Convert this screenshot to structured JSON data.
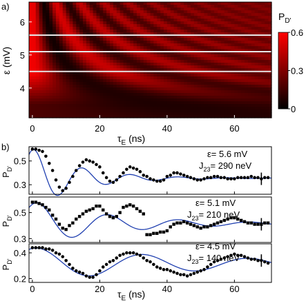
{
  "chart_data": [
    {
      "panel_label": "a)",
      "type": "heatmap",
      "xlabel_main": "τ",
      "xlabel_sub": "E",
      "xlabel_unit": " (ns)",
      "ylabel": "ε (mV)",
      "xlim": [
        -1,
        71
      ],
      "ylim": [
        3.1,
        6.6
      ],
      "xticks": [
        0,
        20,
        40,
        60
      ],
      "yticks": [
        4,
        5,
        6
      ],
      "cut_lines_y": [
        5.6,
        5.1,
        4.5
      ],
      "colorbar": {
        "label_main": "P",
        "label_sub": "D'",
        "ticks": [
          "0",
          "0.3",
          "0.6"
        ],
        "range": [
          0,
          0.6
        ],
        "colors": [
          "#000000",
          "#ff0000"
        ]
      }
    },
    {
      "panel_label": "b)",
      "type": "scatter",
      "xlabel_main": "τ",
      "xlabel_sub": "E",
      "xlabel_unit": " (ns)",
      "xlim": [
        -1,
        71
      ],
      "xticks": [
        0,
        20,
        40,
        60
      ],
      "panels": [
        {
          "ylabel_main": "P",
          "ylabel_sub": "D'",
          "ylim": [
            0.22,
            0.62
          ],
          "yticks": [
            "0.3",
            "0.5"
          ],
          "annotation_eps": "ε= 5.6 mV",
          "annotation_j_main": "J",
          "annotation_j_sub": "23",
          "annotation_j_value": "= 290 neV",
          "marker": "circle",
          "fit": {
            "offset": 0.355,
            "amp": 0.25,
            "omega": 0.44,
            "phase": 0.3,
            "tau": 14
          },
          "points": [
            [
              0,
              0.6
            ],
            [
              1,
              0.6
            ],
            [
              2,
              0.59
            ],
            [
              3,
              0.58
            ],
            [
              4,
              0.54
            ],
            [
              5,
              0.48
            ],
            [
              6,
              0.42
            ],
            [
              7,
              0.34
            ],
            [
              8,
              0.28
            ],
            [
              9,
              0.25
            ],
            [
              10,
              0.27
            ],
            [
              11,
              0.32
            ],
            [
              12,
              0.37
            ],
            [
              13,
              0.42
            ],
            [
              14,
              0.46
            ],
            [
              15,
              0.49
            ],
            [
              16,
              0.51
            ],
            [
              17,
              0.5
            ],
            [
              18,
              0.49
            ],
            [
              19,
              0.47
            ],
            [
              20,
              0.45
            ],
            [
              21,
              0.4
            ],
            [
              22,
              0.36
            ],
            [
              23,
              0.33
            ],
            [
              24,
              0.32
            ],
            [
              25,
              0.34
            ],
            [
              26,
              0.37
            ],
            [
              27,
              0.4
            ],
            [
              28,
              0.43
            ],
            [
              29,
              0.45
            ],
            [
              30,
              0.44
            ],
            [
              31,
              0.43
            ],
            [
              32,
              0.41
            ],
            [
              33,
              0.38
            ],
            [
              34,
              0.37
            ],
            [
              35,
              0.35
            ],
            [
              36,
              0.34
            ],
            [
              37,
              0.33
            ],
            [
              38,
              0.33
            ],
            [
              39,
              0.34
            ],
            [
              40,
              0.37
            ],
            [
              41,
              0.38
            ],
            [
              42,
              0.4
            ],
            [
              43,
              0.4
            ],
            [
              44,
              0.39
            ],
            [
              45,
              0.38
            ],
            [
              46,
              0.37
            ],
            [
              47,
              0.36
            ],
            [
              48,
              0.35
            ],
            [
              49,
              0.34
            ],
            [
              50,
              0.34
            ],
            [
              51,
              0.35
            ],
            [
              52,
              0.36
            ],
            [
              53,
              0.36
            ],
            [
              54,
              0.37
            ],
            [
              55,
              0.37
            ],
            [
              56,
              0.36
            ],
            [
              57,
              0.36
            ],
            [
              58,
              0.35
            ],
            [
              59,
              0.35
            ],
            [
              60,
              0.35
            ],
            [
              61,
              0.36
            ],
            [
              62,
              0.36
            ],
            [
              63,
              0.36
            ],
            [
              64,
              0.36
            ],
            [
              65,
              0.37
            ],
            [
              66,
              0.36
            ],
            [
              67,
              0.36
            ],
            [
              68,
              0.35
            ],
            [
              69,
              0.36
            ],
            [
              70,
              0.36
            ]
          ]
        },
        {
          "ylabel_main": "P",
          "ylabel_sub": "D'",
          "ylim": [
            0.27,
            0.62
          ],
          "yticks": [
            "0.3",
            "0.5"
          ],
          "annotation_eps": "ε= 5.1 mV",
          "annotation_j_main": "J",
          "annotation_j_sub": "23",
          "annotation_j_value": "= 210 neV",
          "marker": "square",
          "fit": {
            "offset": 0.415,
            "amp": 0.17,
            "omega": 0.3,
            "phase": 0.5,
            "tau": 25
          },
          "points": [
            [
              0,
              0.58
            ],
            [
              1,
              0.58
            ],
            [
              2,
              0.57
            ],
            [
              3,
              0.56
            ],
            [
              4,
              0.54
            ],
            [
              5,
              0.52
            ],
            [
              6,
              0.48
            ],
            [
              7,
              0.45
            ],
            [
              8,
              0.41
            ],
            [
              9,
              0.38
            ],
            [
              10,
              0.37
            ],
            [
              11,
              0.4
            ],
            [
              12,
              0.42
            ],
            [
              13,
              0.45
            ],
            [
              14,
              0.47
            ],
            [
              15,
              0.49
            ],
            [
              16,
              0.51
            ],
            [
              17,
              0.52
            ],
            [
              18,
              0.53
            ],
            [
              19,
              0.55
            ],
            [
              20,
              0.55
            ],
            [
              21,
              0.52
            ],
            [
              22,
              0.49
            ],
            [
              23,
              0.47
            ],
            [
              24,
              0.46
            ],
            [
              25,
              0.47
            ],
            [
              26,
              0.5
            ],
            [
              27,
              0.54
            ],
            [
              28,
              0.55
            ],
            [
              29,
              0.56
            ],
            [
              30,
              0.55
            ],
            [
              31,
              0.53
            ],
            [
              32,
              0.51
            ],
            [
              33,
              0.49
            ],
            [
              34,
              0.33
            ],
            [
              35,
              0.33
            ],
            [
              36,
              0.34
            ],
            [
              37,
              0.34
            ],
            [
              38,
              0.35
            ],
            [
              39,
              0.35
            ],
            [
              40,
              0.36
            ],
            [
              41,
              0.39
            ],
            [
              42,
              0.41
            ],
            [
              43,
              0.42
            ],
            [
              44,
              0.42
            ],
            [
              45,
              0.43
            ],
            [
              46,
              0.42
            ],
            [
              47,
              0.41
            ],
            [
              48,
              0.4
            ],
            [
              49,
              0.39
            ],
            [
              50,
              0.38
            ],
            [
              51,
              0.39
            ],
            [
              52,
              0.39
            ],
            [
              53,
              0.4
            ],
            [
              54,
              0.41
            ],
            [
              55,
              0.42
            ],
            [
              56,
              0.43
            ],
            [
              57,
              0.44
            ],
            [
              58,
              0.45
            ],
            [
              59,
              0.46
            ],
            [
              60,
              0.46
            ],
            [
              61,
              0.45
            ],
            [
              62,
              0.44
            ],
            [
              63,
              0.43
            ],
            [
              64,
              0.42
            ],
            [
              65,
              0.42
            ],
            [
              66,
              0.41
            ],
            [
              67,
              0.41
            ],
            [
              68,
              0.41
            ],
            [
              69,
              0.42
            ],
            [
              70,
              0.42
            ]
          ]
        },
        {
          "ylabel_main": "P",
          "ylabel_sub": "D'",
          "ylim": [
            0.17,
            0.47
          ],
          "yticks": [
            "0.2",
            "0.4"
          ],
          "annotation_eps": "ε= 4.5 mV",
          "annotation_j_main": "J",
          "annotation_j_sub": "23",
          "annotation_j_value": "= 140 neV",
          "marker": "circle",
          "fit": {
            "offset": 0.315,
            "amp": 0.125,
            "omega": 0.2,
            "phase": 0.3,
            "tau": 60
          },
          "points": [
            [
              0,
              0.44
            ],
            [
              1,
              0.44
            ],
            [
              2,
              0.44
            ],
            [
              3,
              0.44
            ],
            [
              4,
              0.43
            ],
            [
              5,
              0.43
            ],
            [
              6,
              0.42
            ],
            [
              7,
              0.4
            ],
            [
              8,
              0.39
            ],
            [
              9,
              0.37
            ],
            [
              10,
              0.34
            ],
            [
              11,
              0.31
            ],
            [
              12,
              0.28
            ],
            [
              13,
              0.26
            ],
            [
              14,
              0.25
            ],
            [
              15,
              0.24
            ],
            [
              16,
              0.22
            ],
            [
              17,
              0.21
            ],
            [
              18,
              0.21
            ],
            [
              19,
              0.23
            ],
            [
              20,
              0.26
            ],
            [
              21,
              0.29
            ],
            [
              22,
              0.31
            ],
            [
              23,
              0.33
            ],
            [
              24,
              0.34
            ],
            [
              25,
              0.36
            ],
            [
              26,
              0.38
            ],
            [
              27,
              0.39
            ],
            [
              28,
              0.4
            ],
            [
              29,
              0.4
            ],
            [
              30,
              0.4
            ],
            [
              31,
              0.39
            ],
            [
              32,
              0.38
            ],
            [
              33,
              0.36
            ],
            [
              34,
              0.34
            ],
            [
              35,
              0.33
            ],
            [
              36,
              0.31
            ],
            [
              37,
              0.29
            ],
            [
              38,
              0.28
            ],
            [
              39,
              0.27
            ],
            [
              40,
              0.27
            ],
            [
              41,
              0.26
            ],
            [
              42,
              0.25
            ],
            [
              43,
              0.24
            ],
            [
              44,
              0.23
            ],
            [
              45,
              0.23
            ],
            [
              46,
              0.22
            ],
            [
              47,
              0.23
            ],
            [
              48,
              0.24
            ],
            [
              49,
              0.25
            ],
            [
              50,
              0.26
            ],
            [
              51,
              0.27
            ],
            [
              52,
              0.29
            ],
            [
              53,
              0.31
            ],
            [
              54,
              0.33
            ],
            [
              55,
              0.34
            ],
            [
              56,
              0.35
            ],
            [
              57,
              0.36
            ],
            [
              58,
              0.37
            ],
            [
              59,
              0.38
            ],
            [
              60,
              0.39
            ],
            [
              61,
              0.38
            ],
            [
              62,
              0.38
            ],
            [
              63,
              0.37
            ],
            [
              64,
              0.36
            ],
            [
              65,
              0.35
            ],
            [
              66,
              0.35
            ],
            [
              67,
              0.34
            ],
            [
              68,
              0.34
            ],
            [
              69,
              0.33
            ],
            [
              70,
              0.32
            ]
          ]
        }
      ]
    }
  ]
}
